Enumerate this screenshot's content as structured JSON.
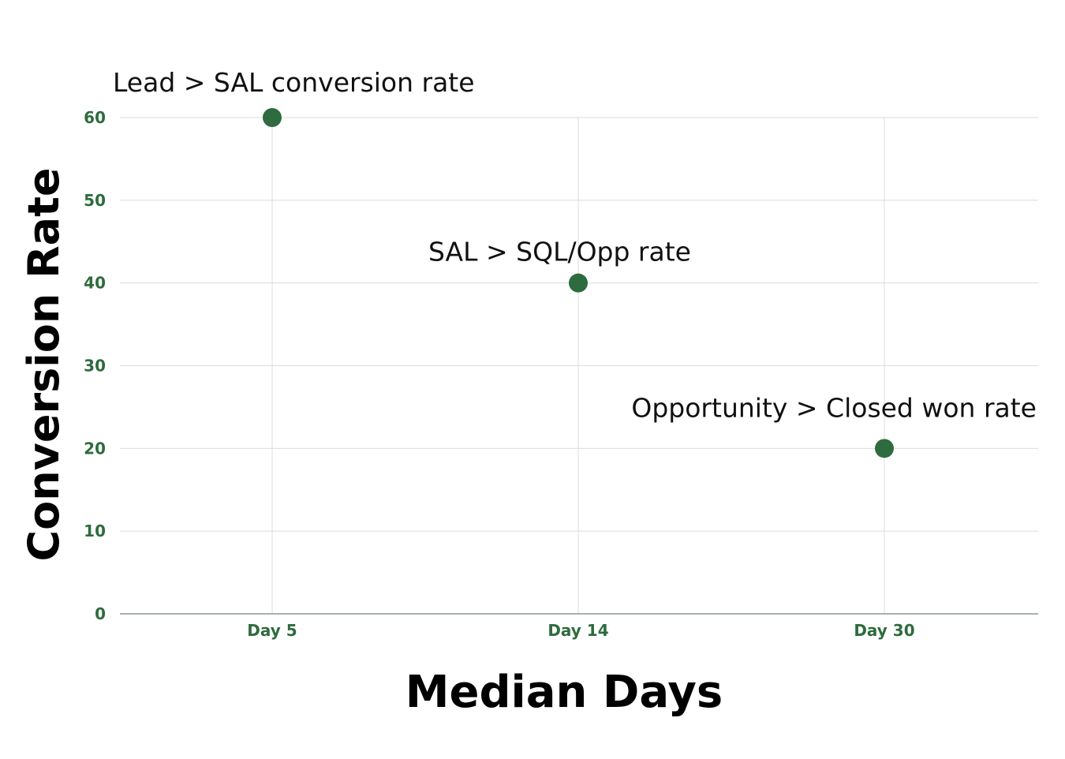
{
  "chart_data": {
    "type": "scatter",
    "title": "",
    "xlabel": "Median Days",
    "ylabel": "Conversion Rate",
    "categories": [
      "Day 5",
      "Day 14",
      "Day 30"
    ],
    "ylim": [
      0,
      60
    ],
    "yticks": [
      0,
      10,
      20,
      30,
      40,
      50,
      60
    ],
    "grid": true,
    "point_color": "#2e6b3e",
    "points": [
      {
        "x": "Day 5",
        "y": 60,
        "label": "Lead > SAL conversion rate"
      },
      {
        "x": "Day 14",
        "y": 40,
        "label": "SAL > SQL/Opp rate"
      },
      {
        "x": "Day 30",
        "y": 20,
        "label": "Opportunity > Closed won rate"
      }
    ]
  }
}
